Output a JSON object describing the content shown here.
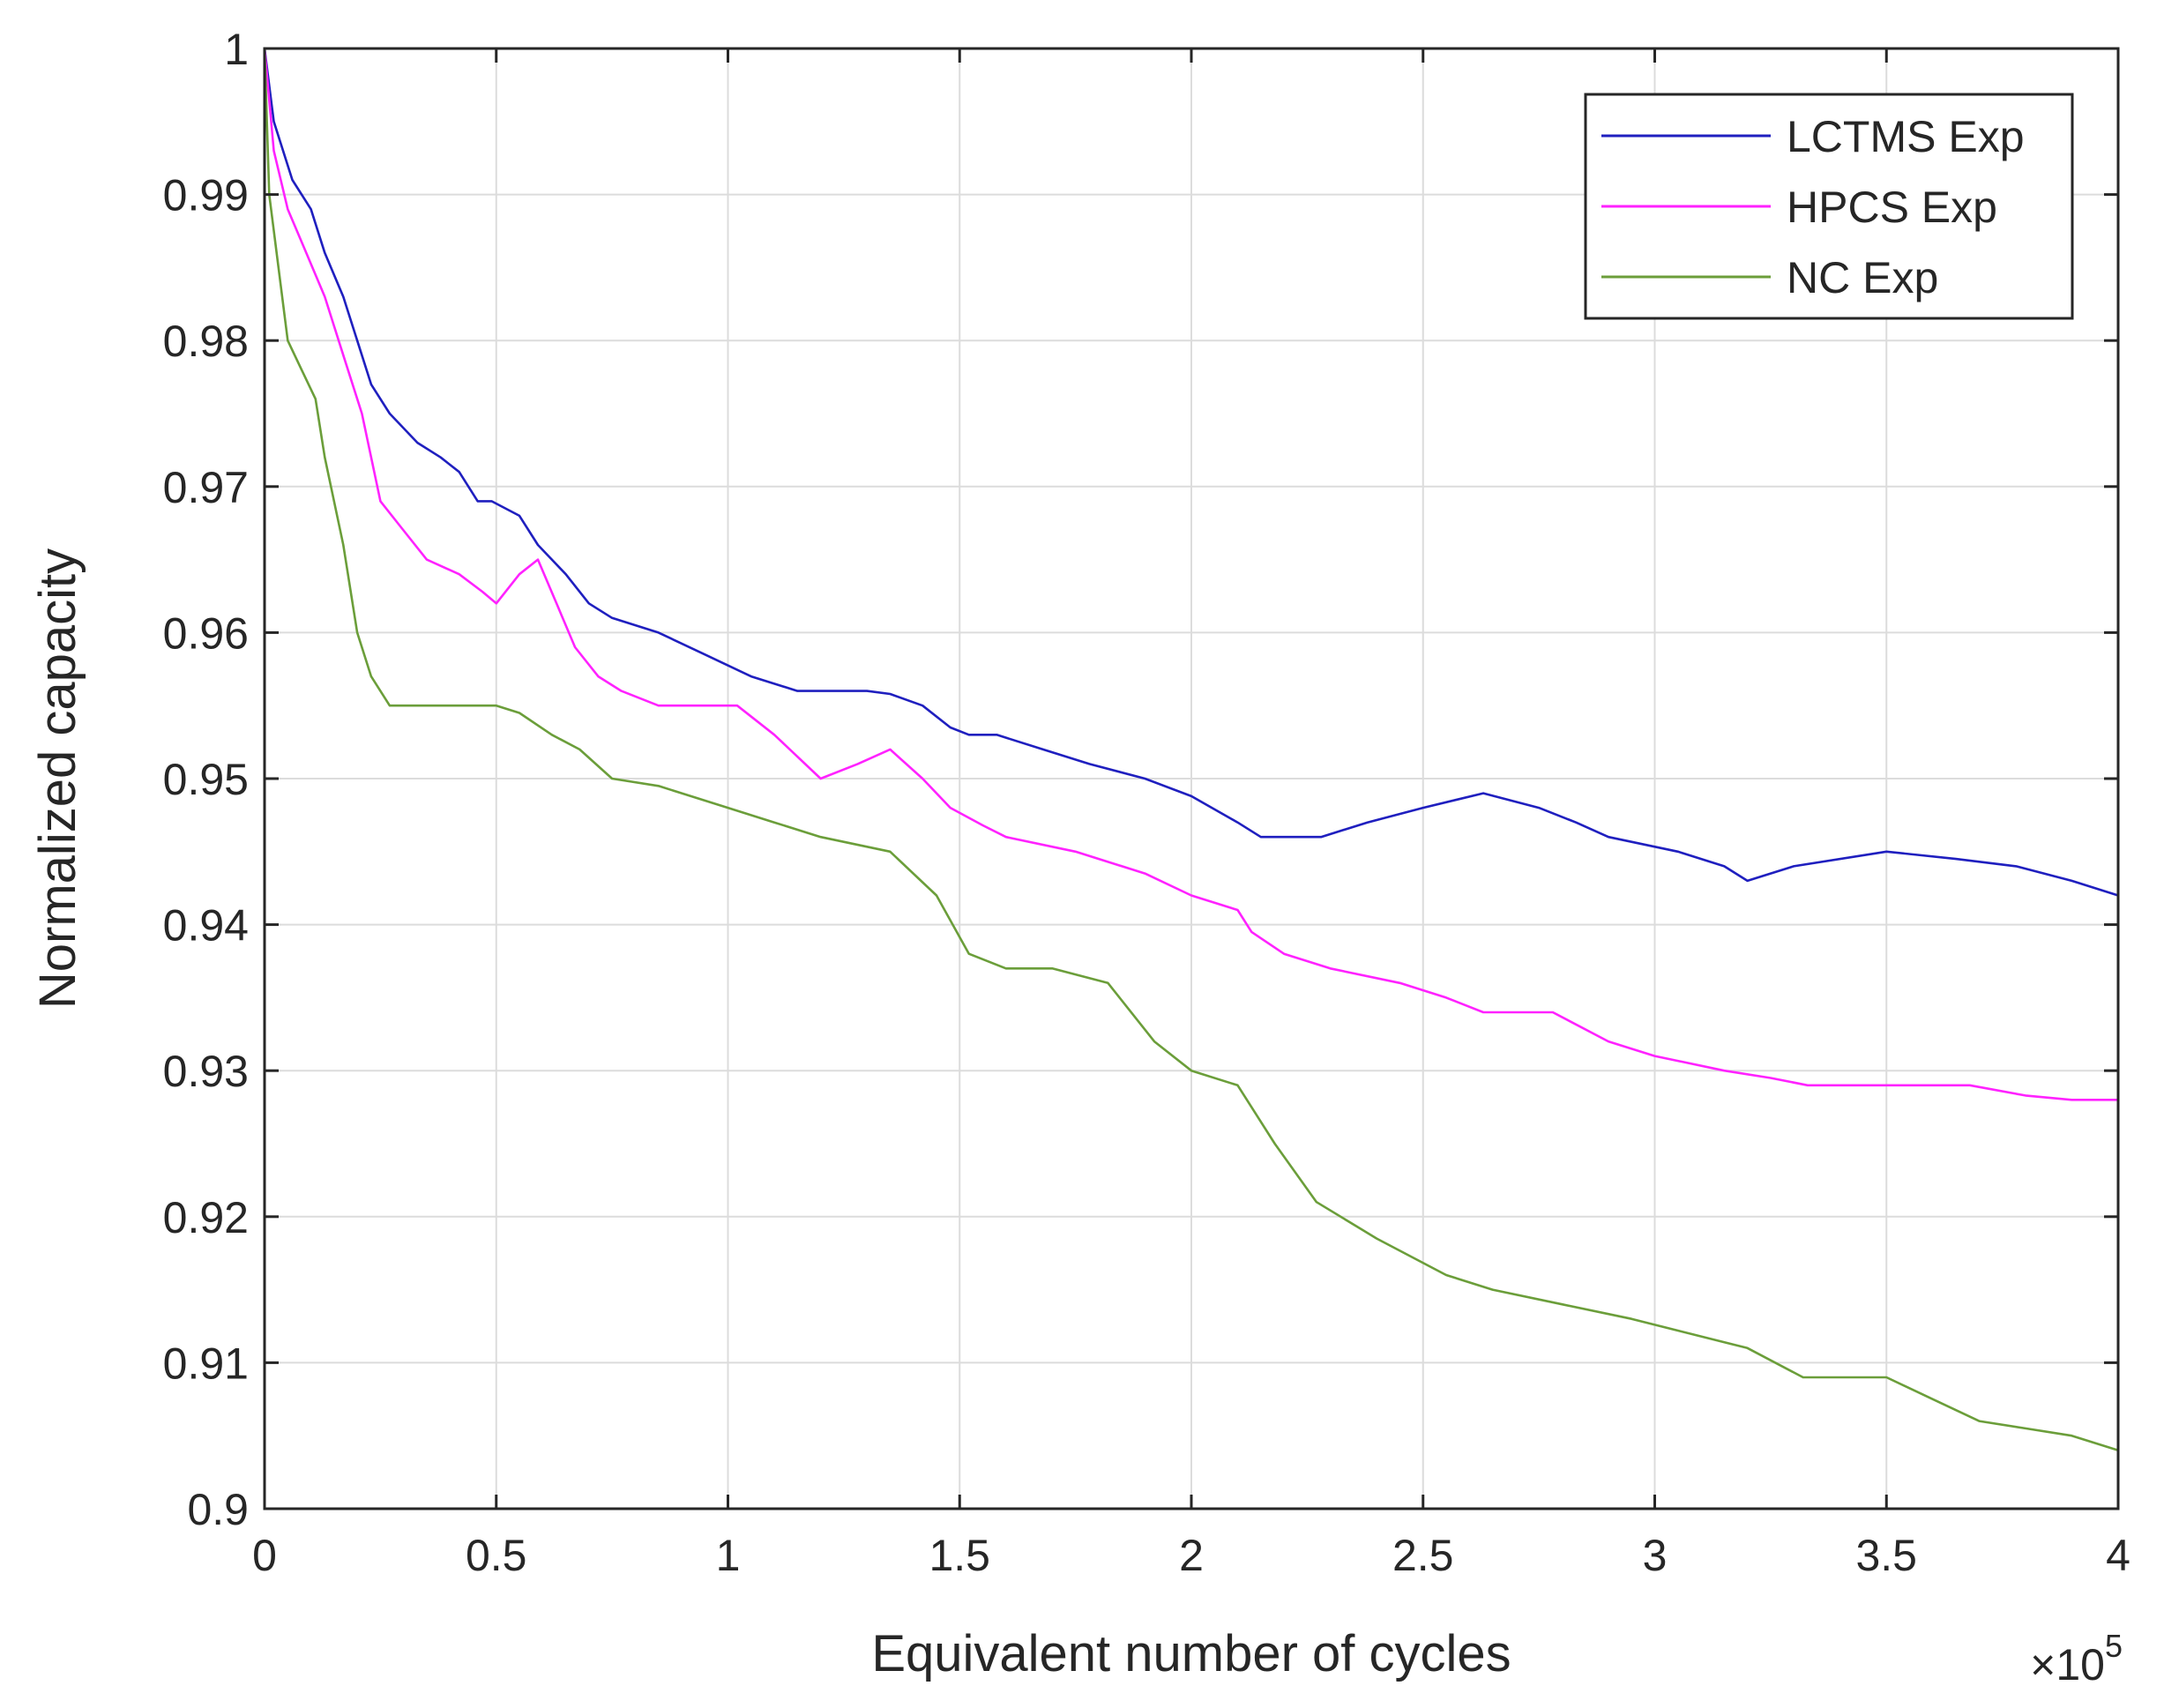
{
  "chart_data": {
    "type": "line",
    "title": "",
    "xlabel": "Equivalent number of cycles",
    "ylabel": "Normalized capacity",
    "x_multiplier_label": "×10",
    "x_multiplier_exponent": "5",
    "xlim": [
      0,
      4
    ],
    "ylim": [
      0.9,
      1
    ],
    "grid": true,
    "legend_position": "top-right",
    "x_ticks": [
      0,
      0.5,
      1,
      1.5,
      2,
      2.5,
      3,
      3.5,
      4
    ],
    "x_tick_labels": [
      "0",
      "0.5",
      "1",
      "1.5",
      "2",
      "2.5",
      "3",
      "3.5",
      "4"
    ],
    "y_ticks": [
      0.9,
      0.91,
      0.92,
      0.93,
      0.94,
      0.95,
      0.96,
      0.97,
      0.98,
      0.99,
      1
    ],
    "y_tick_labels": [
      "0.9",
      "0.91",
      "0.92",
      "0.93",
      "0.94",
      "0.95",
      "0.96",
      "0.97",
      "0.98",
      "0.99",
      "1"
    ],
    "series": [
      {
        "name": "LCTMS Exp",
        "color": "#1f1fbf",
        "x": [
          0,
          0.02,
          0.06,
          0.1,
          0.13,
          0.17,
          0.2,
          0.23,
          0.27,
          0.33,
          0.38,
          0.42,
          0.46,
          0.49,
          0.55,
          0.59,
          0.65,
          0.7,
          0.75,
          0.85,
          0.95,
          1.05,
          1.15,
          1.2,
          1.3,
          1.35,
          1.42,
          1.48,
          1.52,
          1.58,
          1.68,
          1.78,
          1.9,
          2.0,
          2.1,
          2.15,
          2.2,
          2.28,
          2.38,
          2.5,
          2.63,
          2.75,
          2.83,
          2.9,
          3.05,
          3.15,
          3.2,
          3.3,
          3.5,
          3.65,
          3.78,
          3.9,
          4.0
        ],
        "y": [
          1.0,
          0.995,
          0.991,
          0.989,
          0.986,
          0.983,
          0.98,
          0.977,
          0.975,
          0.973,
          0.972,
          0.971,
          0.969,
          0.969,
          0.968,
          0.966,
          0.964,
          0.962,
          0.961,
          0.96,
          0.9585,
          0.957,
          0.956,
          0.956,
          0.956,
          0.9558,
          0.955,
          0.9535,
          0.953,
          0.953,
          0.952,
          0.951,
          0.95,
          0.9488,
          0.947,
          0.946,
          0.946,
          0.946,
          0.947,
          0.948,
          0.949,
          0.948,
          0.947,
          0.946,
          0.945,
          0.944,
          0.943,
          0.944,
          0.945,
          0.9445,
          0.944,
          0.943,
          0.942
        ]
      },
      {
        "name": "HPCS Exp",
        "color": "#ff22ff",
        "x": [
          0,
          0.02,
          0.05,
          0.09,
          0.13,
          0.17,
          0.21,
          0.25,
          0.3,
          0.35,
          0.42,
          0.47,
          0.5,
          0.55,
          0.59,
          0.63,
          0.67,
          0.72,
          0.77,
          0.85,
          0.95,
          1.02,
          1.1,
          1.2,
          1.28,
          1.35,
          1.42,
          1.48,
          1.55,
          1.6,
          1.75,
          1.9,
          2.0,
          2.1,
          2.13,
          2.2,
          2.3,
          2.45,
          2.55,
          2.63,
          2.7,
          2.78,
          2.9,
          3.0,
          3.15,
          3.25,
          3.33,
          3.45,
          3.55,
          3.68,
          3.8,
          3.9,
          4.0
        ],
        "y": [
          1.0,
          0.993,
          0.989,
          0.986,
          0.983,
          0.979,
          0.975,
          0.969,
          0.967,
          0.965,
          0.964,
          0.9628,
          0.962,
          0.964,
          0.965,
          0.962,
          0.959,
          0.957,
          0.956,
          0.955,
          0.955,
          0.955,
          0.953,
          0.95,
          0.951,
          0.952,
          0.95,
          0.948,
          0.9468,
          0.946,
          0.945,
          0.9435,
          0.942,
          0.941,
          0.9395,
          0.938,
          0.937,
          0.936,
          0.935,
          0.934,
          0.934,
          0.934,
          0.932,
          0.931,
          0.93,
          0.9295,
          0.929,
          0.929,
          0.929,
          0.929,
          0.9283,
          0.928,
          0.928
        ]
      },
      {
        "name": "NC Exp",
        "color": "#6b9e3a",
        "x": [
          0,
          0.01,
          0.03,
          0.05,
          0.08,
          0.11,
          0.13,
          0.17,
          0.2,
          0.23,
          0.27,
          0.3,
          0.35,
          0.42,
          0.5,
          0.55,
          0.62,
          0.68,
          0.75,
          0.85,
          1.0,
          1.1,
          1.2,
          1.35,
          1.45,
          1.52,
          1.6,
          1.7,
          1.82,
          1.92,
          2.0,
          2.1,
          2.18,
          2.27,
          2.4,
          2.55,
          2.65,
          2.8,
          2.95,
          3.05,
          3.2,
          3.32,
          3.4,
          3.5,
          3.6,
          3.7,
          3.8,
          3.9,
          4.0
        ],
        "y": [
          1.0,
          0.99,
          0.985,
          0.98,
          0.978,
          0.976,
          0.972,
          0.966,
          0.96,
          0.957,
          0.955,
          0.955,
          0.955,
          0.955,
          0.955,
          0.9545,
          0.953,
          0.952,
          0.95,
          0.9495,
          0.948,
          0.947,
          0.946,
          0.945,
          0.942,
          0.938,
          0.937,
          0.937,
          0.936,
          0.932,
          0.93,
          0.929,
          0.925,
          0.921,
          0.9185,
          0.916,
          0.915,
          0.914,
          0.913,
          0.9122,
          0.911,
          0.909,
          0.909,
          0.909,
          0.9075,
          0.906,
          0.9055,
          0.905,
          0.904
        ]
      }
    ]
  }
}
